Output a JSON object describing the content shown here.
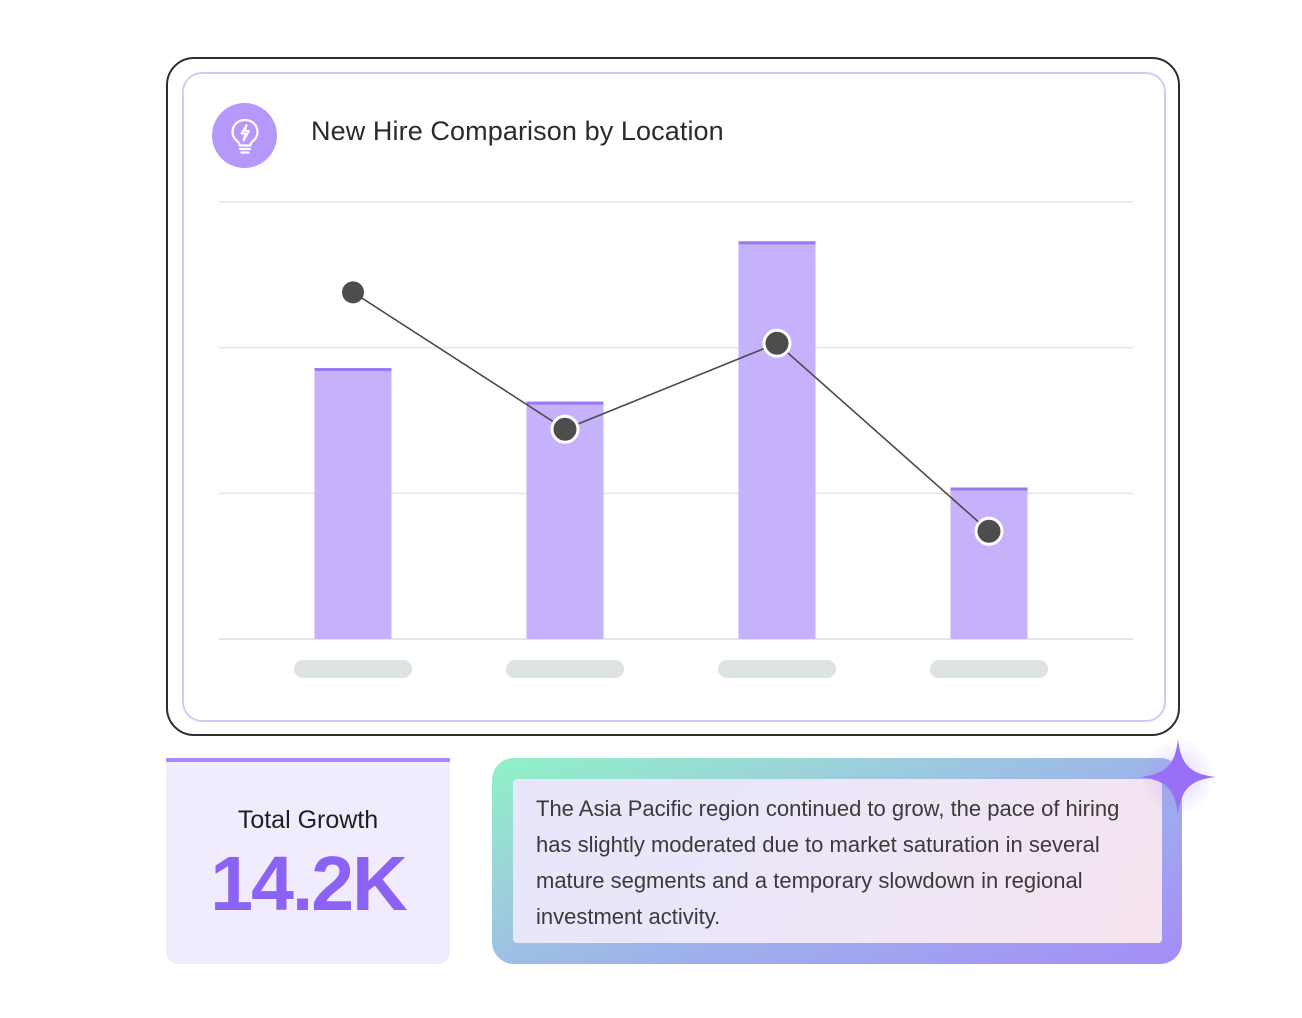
{
  "title": "New Hire Comparison by Location",
  "stat": {
    "label": "Total Growth",
    "value": "14.2K"
  },
  "insight": {
    "text": "The Asia Pacific region continued to grow, the pace of hiring has slightly moderated due to market saturation in several mature segments and a temporary slowdown in regional investment activity."
  },
  "icons": {
    "badge": "lightbulb-bolt-icon",
    "sparkle": "sparkle-icon"
  },
  "colors": {
    "bar": "#c6b1fb",
    "bar_top": "#9a78f3",
    "line": "#4a4a4a",
    "point": "#4d4d4d",
    "accent": "#8b62f4",
    "placeholder_label": "#dde2e2",
    "grid": "#e6e6e6"
  },
  "chart_data": {
    "type": "bar",
    "title": "New Hire Comparison by Location",
    "categories": [
      "",
      "",
      "",
      ""
    ],
    "category_labels_visible": false,
    "ylim": [
      0,
      3
    ],
    "grid": true,
    "series": [
      {
        "type": "bar",
        "values": [
          1.86,
          1.63,
          2.73,
          1.04
        ]
      },
      {
        "type": "line",
        "values": [
          2.38,
          1.44,
          2.03,
          0.74
        ]
      }
    ]
  }
}
